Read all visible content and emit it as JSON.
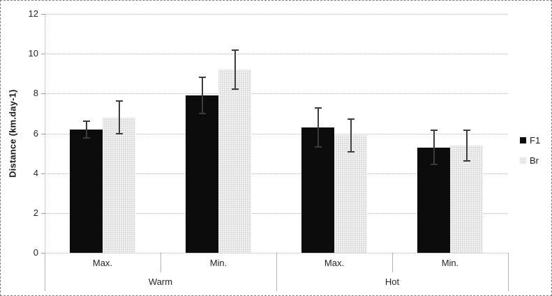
{
  "figure": {
    "background": "#ffffff",
    "border_color": "#7a7a7a"
  },
  "chart_data": {
    "type": "bar",
    "title": "",
    "ylabel": "Distance (km.day-1)",
    "xlabel": "",
    "ylim": [
      0,
      12
    ],
    "yticks": [
      0,
      2,
      4,
      6,
      8,
      10,
      12
    ],
    "grid": true,
    "grid_style": "dotted",
    "legend_position": "right-middle",
    "categories": [
      "Max.",
      "Min.",
      "Max.",
      "Min."
    ],
    "group_labels": [
      "Warm",
      "Hot"
    ],
    "series": [
      {
        "name": "F1",
        "color": "#0c0c0c",
        "fill": "solid",
        "values": [
          6.2,
          7.9,
          6.3,
          5.3
        ],
        "errors": [
          0.45,
          0.95,
          1.0,
          0.9
        ]
      },
      {
        "name": "Br",
        "color": "#d9d9d9",
        "fill": "dotted",
        "values": [
          6.8,
          9.2,
          5.9,
          5.4
        ],
        "errors": [
          0.85,
          1.0,
          0.85,
          0.8
        ]
      }
    ]
  }
}
